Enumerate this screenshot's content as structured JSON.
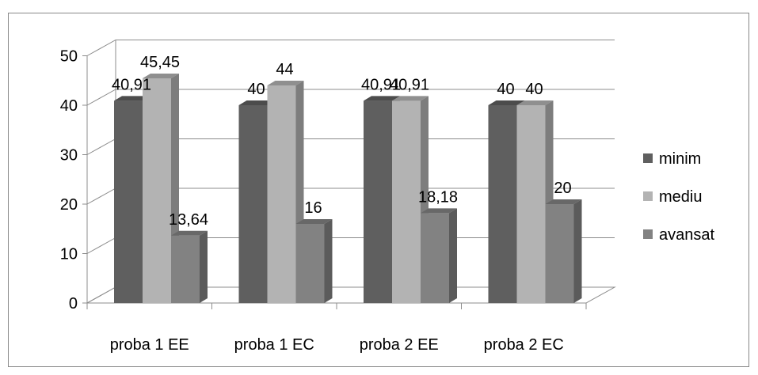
{
  "chart_data": {
    "type": "bar",
    "title": "",
    "xlabel": "",
    "ylabel": "",
    "ylim": [
      0,
      50
    ],
    "yticks": [
      "0",
      "10",
      "20",
      "30",
      "40",
      "50"
    ],
    "grid": true,
    "three_d": true,
    "legend_position": "right",
    "categories": [
      "proba 1 EE",
      "proba 1 EC",
      "proba 2 EE",
      "proba 2 EC"
    ],
    "series": [
      {
        "name": "minim",
        "values": [
          40.91,
          40,
          40.91,
          40
        ],
        "labels": [
          "40,91",
          "40",
          "40,91",
          "40"
        ],
        "color": "#5f5f5f"
      },
      {
        "name": "mediu",
        "values": [
          45.45,
          44,
          40.91,
          40
        ],
        "labels": [
          "45,45",
          "44",
          "40,91",
          "40"
        ],
        "color": "#b3b3b3"
      },
      {
        "name": "avansat",
        "values": [
          13.64,
          16,
          18.18,
          20
        ],
        "labels": [
          "13,64",
          "16",
          "18,18",
          "20"
        ],
        "color": "#828282"
      }
    ]
  }
}
